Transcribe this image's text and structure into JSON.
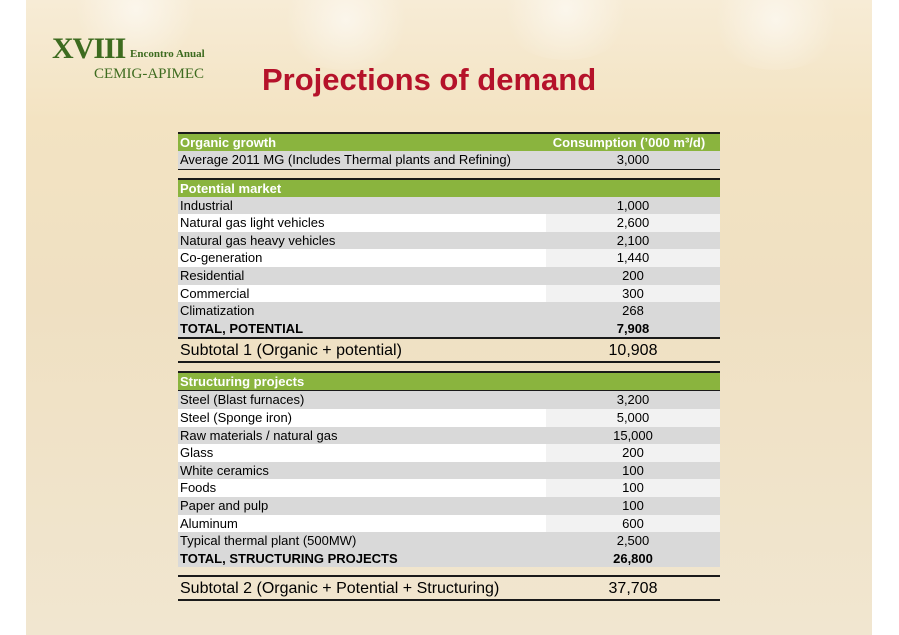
{
  "logo": {
    "roman": "XVIII",
    "event": "Encontro Anual",
    "org": "CEMIG-APIMEC"
  },
  "title": "Projections of demand",
  "table": {
    "header": {
      "label": "Organic growth",
      "value": "Consumption (’000 m³/d)"
    },
    "organic_row": {
      "label": "Average 2011 MG (Includes Thermal plants and Refining)",
      "value": "3,000"
    },
    "potential_header": "Potential market",
    "potential_rows": [
      {
        "label": "Industrial",
        "value": "1,000"
      },
      {
        "label": "Natural gas light vehicles",
        "value": "2,600"
      },
      {
        "label": "Natural gas heavy vehicles",
        "value": "2,100"
      },
      {
        "label": "Co-generation",
        "value": "1,440"
      },
      {
        "label": "Residential",
        "value": "200"
      },
      {
        "label": "Commercial",
        "value": "300"
      },
      {
        "label": "Climatization",
        "value": "268"
      }
    ],
    "potential_total": {
      "label": "TOTAL, POTENTIAL",
      "value": "7,908"
    },
    "subtotal1": {
      "label": "Subtotal 1 (Organic + potential)",
      "value": "10,908"
    },
    "structuring_header": "Structuring projects",
    "structuring_rows": [
      {
        "label": "Steel (Blast furnaces)",
        "value": "3,200"
      },
      {
        "label": "Steel (Sponge iron)",
        "value": "5,000"
      },
      {
        "label": "Raw materials / natural gas",
        "value": "15,000"
      },
      {
        "label": "Glass",
        "value": "200"
      },
      {
        "label": "White ceramics",
        "value": "100"
      },
      {
        "label": "Foods",
        "value": "100"
      },
      {
        "label": "Paper and pulp",
        "value": "100"
      },
      {
        "label": "Aluminum",
        "value": "600"
      },
      {
        "label": "Typical thermal plant (500MW)",
        "value": "2,500"
      }
    ],
    "structuring_total": {
      "label": "TOTAL, STRUCTURING PROJECTS",
      "value": "26,800"
    },
    "subtotal2": {
      "label": "Subtotal 2 (Organic + Potential + Structuring)",
      "value": "37,708"
    }
  }
}
